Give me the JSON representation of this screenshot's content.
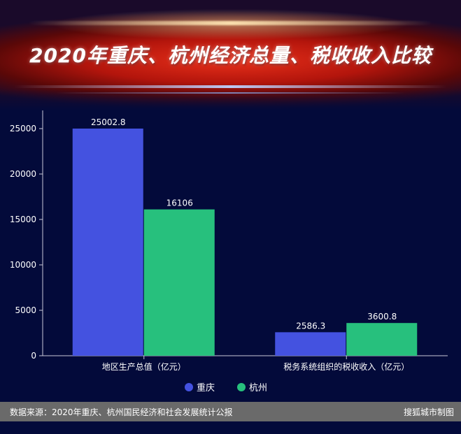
{
  "title": "2020年重庆、杭州经济总量、税收收入比较",
  "source": "数据来源：2020年重庆、杭州国民经济和社会发展统计公报",
  "credit": "搜狐城市制图",
  "colors": {
    "background": "#030a3a",
    "chongqing": "#4452e0",
    "hangzhou": "#27c07d",
    "footer": "#6a6a6a"
  },
  "chart_data": {
    "type": "bar",
    "title": "2020年重庆、杭州经济总量、税收收入比较",
    "categories": [
      "地区生产总值（亿元）",
      "税务系统组织的税收收入（亿元）"
    ],
    "series": [
      {
        "name": "重庆",
        "values": [
          25002.8,
          2586.3
        ]
      },
      {
        "name": "杭州",
        "values": [
          16106,
          3600.8
        ]
      }
    ],
    "data_labels": [
      [
        "25002.8",
        "2586.3"
      ],
      [
        "16106",
        "3600.8"
      ]
    ],
    "yticks": [
      0,
      5000,
      10000,
      15000,
      20000,
      25000
    ],
    "ylim": [
      0,
      27000
    ],
    "grid": false,
    "legend": "bottom-center"
  }
}
